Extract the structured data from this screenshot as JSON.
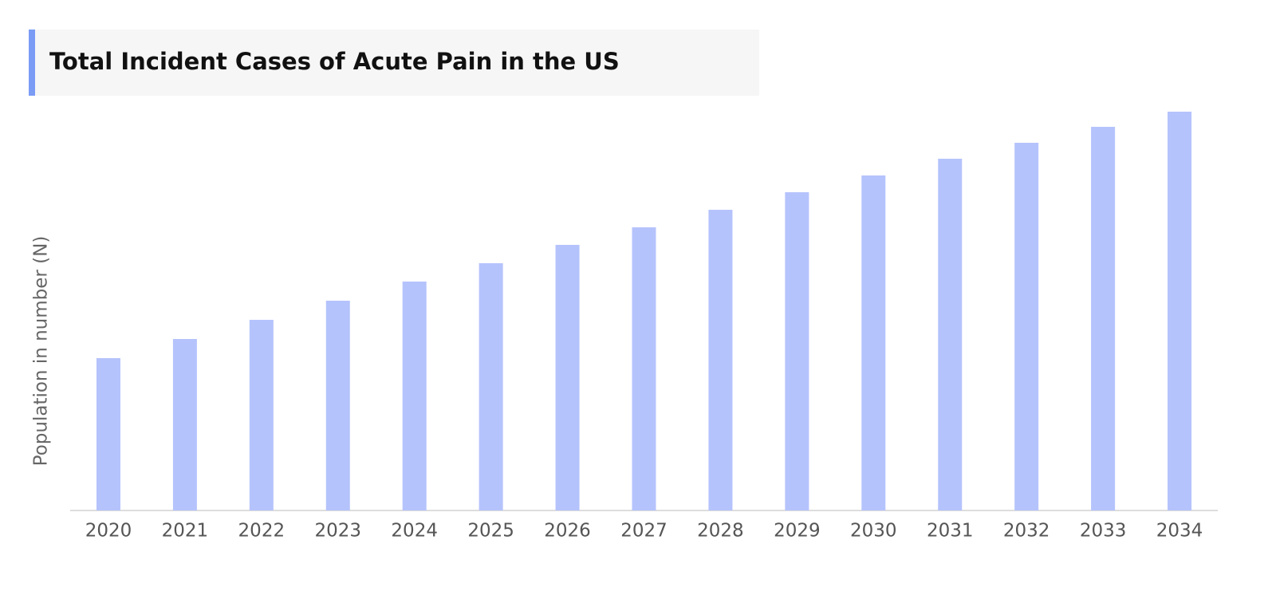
{
  "chart_data": {
    "type": "bar",
    "title": "Total Incident Cases of Acute Pain in the US",
    "y_label": "Population in number (N)",
    "categories": [
      "2020",
      "2021",
      "2022",
      "2023",
      "2024",
      "2025",
      "2026",
      "2027",
      "2028",
      "2029",
      "2030",
      "2031",
      "2032",
      "2033",
      "2034"
    ],
    "values": [
      191,
      215,
      239,
      263,
      287,
      310,
      333,
      355,
      377,
      399,
      420,
      441,
      461,
      481,
      500
    ],
    "color": "#b5c3fc",
    "ylim": [
      0,
      500
    ]
  }
}
